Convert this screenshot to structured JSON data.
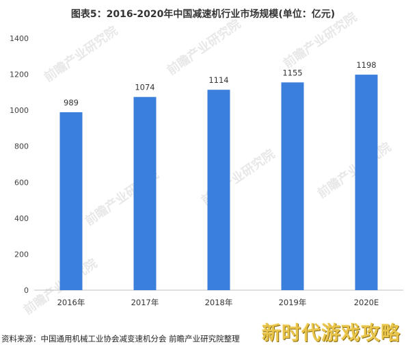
{
  "title": "图表5：2016-2020年中国减速机行业市场规模(单位：亿元)",
  "chart_data": {
    "type": "bar",
    "categories": [
      "2016年",
      "2017年",
      "2018年",
      "2019年",
      "2020E"
    ],
    "values": [
      989,
      1074,
      1114,
      1155,
      1198
    ],
    "ylim": [
      0,
      1400
    ],
    "yticks": [
      0,
      200,
      400,
      600,
      800,
      1000,
      1200,
      1400
    ],
    "bar_color": "#3b7fdd",
    "grid": false,
    "legend": "none"
  },
  "source_text": "资料来源：中国通用机械工业协会减变速机分会 前瞻产业研究院整理",
  "overlay_text": "新时代游戏攻略",
  "watermark_text": "前瞻产业研究院"
}
